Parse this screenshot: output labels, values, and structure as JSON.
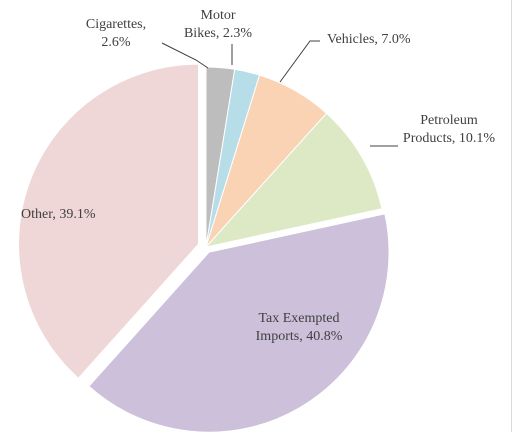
{
  "chart_data": {
    "type": "pie",
    "title": "",
    "series": [
      {
        "categories": [
          "Cigarettes",
          "Motor Bikes",
          "Vehicles",
          "Petroleum Products",
          "Tax Exempted Imports",
          "Other"
        ],
        "values": [
          2.6,
          2.3,
          7.0,
          10.1,
          40.8,
          39.1
        ]
      }
    ],
    "labels": [
      {
        "lines": [
          "Cigarettes,",
          "2.6%"
        ]
      },
      {
        "lines": [
          "Motor",
          "Bikes, 2.3%"
        ]
      },
      {
        "lines": [
          "Vehicles, 7.0%"
        ]
      },
      {
        "lines": [
          "Petroleum",
          "Products, 10.1%"
        ]
      },
      {
        "lines": [
          "Tax Exempted",
          "Imports, 40.8%"
        ]
      },
      {
        "lines": [
          "Other, 39.1%"
        ]
      }
    ],
    "colors": [
      "#BDBDBD",
      "#B7DDE8",
      "#FAD2B4",
      "#DDE8C4",
      "#CCC0DA",
      "#F0D7D7"
    ],
    "legend": "none",
    "data_labels": "category, percentage"
  }
}
